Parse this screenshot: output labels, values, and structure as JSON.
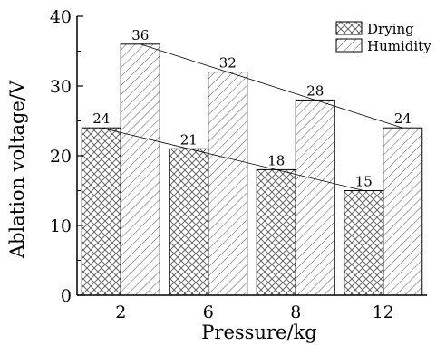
{
  "chart_data": {
    "type": "bar",
    "categories": [
      "2",
      "6",
      "8",
      "12"
    ],
    "series": [
      {
        "name": "Drying",
        "values": [
          24,
          21,
          18,
          15
        ],
        "pattern": "crosshatch",
        "show_trend": true
      },
      {
        "name": "Humidity",
        "values": [
          36,
          32,
          28,
          24
        ],
        "pattern": "diagonal",
        "show_trend": true
      }
    ],
    "xlabel": "Pressure/kg",
    "ylabel": "Ablation voltage/V",
    "ylim": [
      0,
      40
    ],
    "yticks": [
      0,
      10,
      20,
      30,
      40
    ],
    "grid": false,
    "legend_position": "top-right",
    "data_labels": true,
    "colors": {
      "bar_fill": "#ffffff",
      "stroke": "#000000",
      "hatch": "#555555"
    }
  }
}
